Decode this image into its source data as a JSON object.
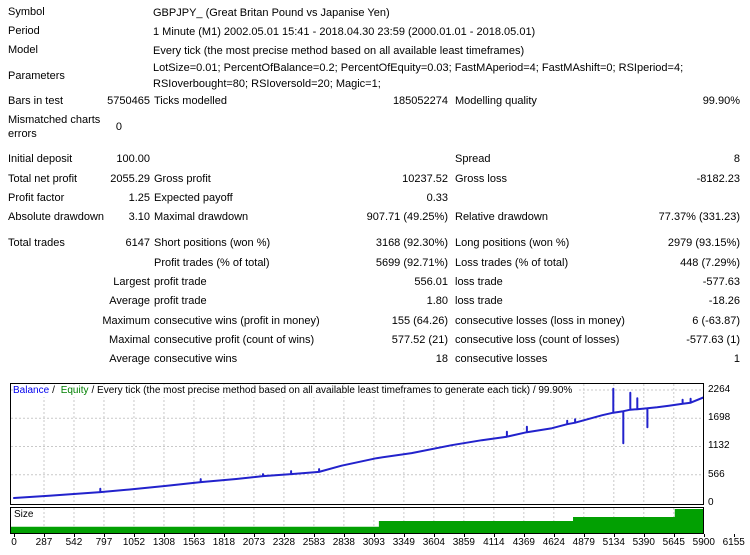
{
  "report": {
    "info_rows": [
      {
        "label": "Symbol",
        "value": "GBPJPY_ (Great Britan Pound vs Japanise Yen)"
      },
      {
        "label": "Period",
        "value": "1 Minute (M1) 2002.05.01 15:41 - 2018.04.30 23:59 (2000.01.01 - 2018.05.01)"
      },
      {
        "label": "Model",
        "value": "Every tick (the most precise method based on all available least timeframes)"
      },
      {
        "label": "Parameters",
        "value": "LotSize=0.01; PercentOfBalance=0.2; PercentOfEquity=0.03; FastMAperiod=4; FastMAshift=0; RSIperiod=4; RSIoverbought=80; RSIoversold=20; Magic=1;",
        "wrap": true
      }
    ],
    "stat_rows": [
      {
        "cells": [
          "Bars in test",
          "5750465",
          "Ticks modelled",
          "185052274",
          "Modelling quality",
          "99.90%"
        ]
      },
      {
        "cells": [
          "Mismatched charts errors",
          "0",
          "",
          "",
          "",
          ""
        ],
        "variant": "tall"
      },
      {
        "variant": "spacer"
      },
      {
        "cells": [
          "Initial deposit",
          "100.00",
          "",
          "",
          "Spread",
          "8"
        ]
      },
      {
        "cells": [
          "Total net profit",
          "2055.29",
          "Gross profit",
          "10237.52",
          "Gross loss",
          "-8182.23"
        ]
      },
      {
        "cells": [
          "Profit factor",
          "1.25",
          "Expected payoff",
          "0.33",
          "",
          ""
        ]
      },
      {
        "cells": [
          "Absolute drawdown",
          "3.10",
          "Maximal drawdown",
          "907.71 (49.25%)",
          "Relative drawdown",
          "77.37% (331.23)"
        ]
      },
      {
        "variant": "spacer"
      },
      {
        "cells": [
          "Total trades",
          "6147",
          "Short positions (won %)",
          "3168 (92.30%)",
          "Long positions (won %)",
          "2979 (93.15%)"
        ]
      },
      {
        "cells": [
          "",
          "",
          "Profit trades (% of total)",
          "5699 (92.71%)",
          "Loss trades (% of total)",
          "448 (7.29%)"
        ]
      },
      {
        "cells": [
          "",
          "Largest",
          "profit trade",
          "556.01",
          "loss trade",
          "-577.63"
        ]
      },
      {
        "cells": [
          "",
          "Average",
          "profit trade",
          "1.80",
          "loss trade",
          "-18.26"
        ]
      },
      {
        "cells": [
          "",
          "Maximum",
          "consecutive wins (profit in money)",
          "155 (64.26)",
          "consecutive losses (loss in money)",
          "6 (-63.87)"
        ]
      },
      {
        "cells": [
          "",
          "Maximal",
          "consecutive profit (count of wins)",
          "577.52 (21)",
          "consecutive loss (count of losses)",
          "-577.63 (1)"
        ]
      },
      {
        "cells": [
          "",
          "Average",
          "consecutive wins",
          "18",
          "consecutive losses",
          "1"
        ]
      }
    ]
  },
  "chart": {
    "legend": {
      "balance": "Balance",
      "sep": "/",
      "equity": "Equity",
      "rest": "/ Every tick (the most precise method based on all available least timeframes to generate each tick) / 99.90%"
    },
    "size_label": "Size"
  },
  "colors": {
    "balance_line": "#2222cc",
    "balance_label": "#0000ee",
    "equity_label": "#008000",
    "size_bar": "#02a002",
    "grid": "#c9c9c9",
    "border": "#000000"
  },
  "chart_data": {
    "type": "line",
    "title": "Balance / Equity / Every tick (the most precise method based on all available least timeframes to generate each tick) / 99.90%",
    "legend_entries": [
      "Balance",
      "Equity"
    ],
    "modelling_quality": "99.90%",
    "y_ticks": [
      0,
      566,
      1132,
      1698,
      2264
    ],
    "ylim": [
      0,
      2380
    ],
    "x_ticks": [
      0,
      287,
      542,
      797,
      1052,
      1308,
      1563,
      1818,
      2073,
      2328,
      2583,
      2838,
      3093,
      3349,
      3604,
      3859,
      4114,
      4369,
      4624,
      4879,
      5134,
      5390,
      5645,
      5900,
      6155
    ],
    "grid": true,
    "series": [
      {
        "name": "Balance",
        "color": "#2222cc",
        "points": [
          [
            0,
            100
          ],
          [
            300,
            145
          ],
          [
            738,
            218
          ],
          [
            738,
            285
          ],
          [
            738,
            218
          ],
          [
            1000,
            272
          ],
          [
            1300,
            342
          ],
          [
            1596,
            418
          ],
          [
            1596,
            478
          ],
          [
            1596,
            418
          ],
          [
            1900,
            480
          ],
          [
            2129,
            538
          ],
          [
            2129,
            578
          ],
          [
            2129,
            538
          ],
          [
            2369,
            578
          ],
          [
            2369,
            638
          ],
          [
            2369,
            578
          ],
          [
            2609,
            622
          ],
          [
            2609,
            678
          ],
          [
            2609,
            622
          ],
          [
            2800,
            748
          ],
          [
            3100,
            898
          ],
          [
            3400,
            1000
          ],
          [
            3742,
            1158
          ],
          [
            4000,
            1258
          ],
          [
            4215,
            1328
          ],
          [
            4215,
            1428
          ],
          [
            4215,
            1328
          ],
          [
            4386,
            1418
          ],
          [
            4386,
            1528
          ],
          [
            4386,
            1418
          ],
          [
            4600,
            1498
          ],
          [
            4730,
            1578
          ],
          [
            4730,
            1648
          ],
          [
            4730,
            1578
          ],
          [
            4798,
            1608
          ],
          [
            4798,
            1678
          ],
          [
            4798,
            1608
          ],
          [
            5030,
            1758
          ],
          [
            5124,
            1808
          ],
          [
            5124,
            2288
          ],
          [
            5124,
            1808
          ],
          [
            5210,
            1838
          ],
          [
            5210,
            1198
          ],
          [
            5210,
            1838
          ],
          [
            5270,
            1868
          ],
          [
            5270,
            2208
          ],
          [
            5270,
            1868
          ],
          [
            5330,
            1878
          ],
          [
            5330,
            2098
          ],
          [
            5330,
            1878
          ],
          [
            5416,
            1898
          ],
          [
            5416,
            1518
          ],
          [
            5416,
            1898
          ],
          [
            5500,
            1918
          ],
          [
            5600,
            1948
          ],
          [
            5717,
            1988
          ],
          [
            5717,
            2068
          ],
          [
            5717,
            1988
          ],
          [
            5785,
            2008
          ],
          [
            5785,
            2088
          ],
          [
            5785,
            2008
          ],
          [
            5900,
            2118
          ],
          [
            6000,
            2178
          ],
          [
            6100,
            2228
          ],
          [
            6155,
            2264
          ]
        ]
      }
    ],
    "size_panel": {
      "type": "step-bar",
      "label": "Size",
      "color": "#02a002",
      "steps": [
        {
          "from_trade": 0,
          "to_trade": 3120,
          "height_frac": 0.25
        },
        {
          "from_trade": 3120,
          "to_trade": 4780,
          "height_frac": 0.48
        },
        {
          "from_trade": 4780,
          "to_trade": 5650,
          "height_frac": 0.64
        },
        {
          "from_trade": 5650,
          "to_trade": 6155,
          "height_frac": 0.96
        }
      ]
    }
  }
}
